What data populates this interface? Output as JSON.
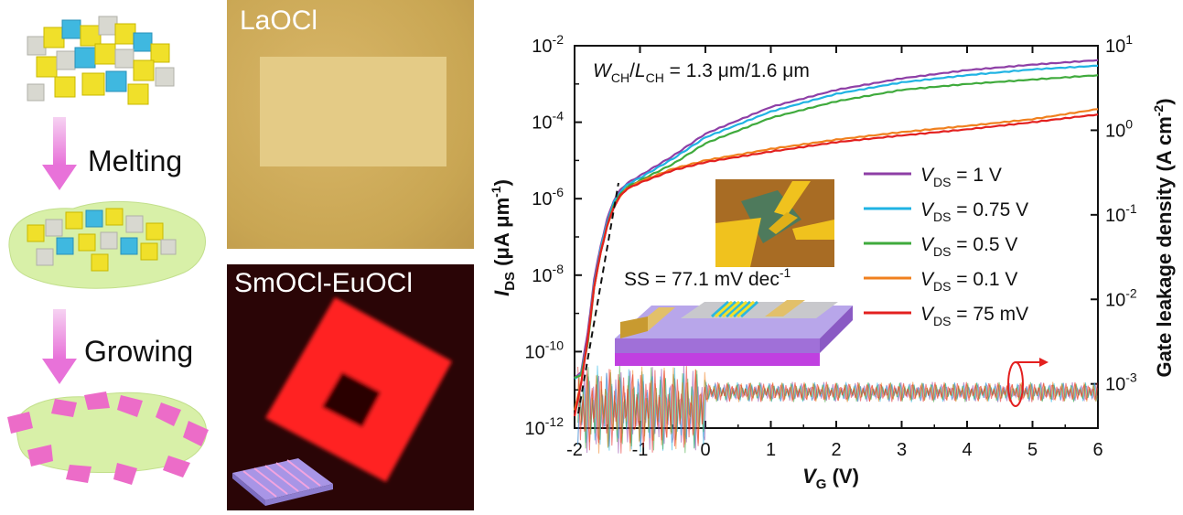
{
  "left": {
    "step1_label": "Melting",
    "step2_label": "Growing"
  },
  "photos": {
    "top_label": "LaOCl",
    "bottom_label": "SmOCl-EuOCl"
  },
  "chart_data": {
    "type": "line",
    "x_axis": {
      "label": "V",
      "label_sub": "G",
      "unit": " (V)",
      "range": [
        -2,
        6
      ],
      "ticks": [
        "-2",
        "-1",
        "0",
        "1",
        "2",
        "3",
        "4",
        "5",
        "6"
      ]
    },
    "y_left": {
      "label": "I",
      "label_sub": "DS",
      "unit": " (μA μm",
      "unit_sup": "-1",
      "unit_close": ")",
      "scale": "log",
      "range": [
        1e-12,
        0.01
      ],
      "tick_mantissa": "10",
      "tick_exponents": [
        "-2",
        "-4",
        "-6",
        "-8",
        "-10",
        "-12"
      ]
    },
    "y_right": {
      "label": "Gate leakage density (A cm",
      "label_sup": "-2",
      "label_close": ")",
      "scale": "log",
      "range": [
        0.0003,
        10
      ],
      "tick_mantissa": "10",
      "tick_exponents": [
        "1",
        "0",
        "-1",
        "-2",
        "-3"
      ]
    },
    "annotations": {
      "geometry_w": "W",
      "geometry_w_sub": "CH",
      "geometry_sep": "/",
      "geometry_l": "L",
      "geometry_l_sub": "CH",
      "geometry_value": " = 1.3 μm/1.6 μm",
      "ss_text": "SS = 77.1 mV dec",
      "ss_sup": "-1"
    },
    "series": [
      {
        "name": "V_DS = 1 V",
        "label_main": "V",
        "label_sub": "DS",
        "label_value": " = 1 V",
        "color": "#8e3fa6",
        "x": [
          -2.0,
          -1.9,
          -1.8,
          -1.7,
          -1.6,
          -1.5,
          -1.4,
          -1.3,
          -1.2,
          -1.0,
          -0.5,
          0,
          1,
          2,
          3,
          4,
          5,
          6
        ],
        "y": [
          2e-11,
          3e-11,
          3e-10,
          8e-09,
          6e-08,
          3e-07,
          9e-07,
          1.7e-06,
          2.5e-06,
          4e-06,
          1.3e-05,
          5e-05,
          0.00025,
          0.0007,
          0.0014,
          0.0023,
          0.0032,
          0.0042
        ]
      },
      {
        "name": "V_DS = 0.75 V",
        "label_main": "V",
        "label_sub": "DS",
        "label_value": " = 0.75 V",
        "color": "#1fb3e3",
        "x": [
          -2.0,
          -1.9,
          -1.8,
          -1.7,
          -1.6,
          -1.5,
          -1.4,
          -1.3,
          -1.2,
          -1.0,
          -0.5,
          0,
          1,
          2,
          3,
          4,
          5,
          6
        ],
        "y": [
          2e-11,
          2.5e-11,
          2e-10,
          6e-09,
          5e-08,
          2.5e-07,
          8e-07,
          1.5e-06,
          2.3e-06,
          3.5e-06,
          1.1e-05,
          4e-05,
          0.00019,
          0.00055,
          0.0011,
          0.0017,
          0.0024,
          0.003
        ]
      },
      {
        "name": "V_DS = 0.5 V",
        "label_main": "V",
        "label_sub": "DS",
        "label_value": " = 0.5 V",
        "color": "#3faa3c",
        "x": [
          -2.0,
          -1.9,
          -1.8,
          -1.7,
          -1.6,
          -1.5,
          -1.4,
          -1.3,
          -1.2,
          -1.0,
          -0.5,
          0,
          1,
          2,
          3,
          4,
          5,
          6
        ],
        "y": [
          2e-11,
          2.5e-11,
          1.5e-10,
          5e-09,
          4e-08,
          2e-07,
          7e-07,
          1.3e-06,
          2e-06,
          3e-06,
          8e-06,
          2.8e-05,
          0.00013,
          0.00035,
          0.0007,
          0.001,
          0.0013,
          0.0017
        ]
      },
      {
        "name": "V_DS = 0.1 V",
        "label_main": "V",
        "label_sub": "DS",
        "label_value": " = 0.1 V",
        "color": "#f0801e",
        "x": [
          -2.0,
          -1.9,
          -1.8,
          -1.7,
          -1.6,
          -1.5,
          -1.4,
          -1.3,
          -1.2,
          -1.0,
          -0.5,
          0,
          1,
          2,
          3,
          4,
          5,
          6
        ],
        "y": [
          3e-12,
          1.5e-11,
          2e-10,
          5e-09,
          4e-08,
          2e-07,
          6e-07,
          1.2e-06,
          1.8e-06,
          2.8e-06,
          6e-06,
          1e-05,
          2e-05,
          3.5e-05,
          5.5e-05,
          8e-05,
          0.00012,
          0.00022
        ]
      },
      {
        "name": "V_DS = 75 mV",
        "label_main": "V",
        "label_sub": "DS",
        "label_value": " = 75 mV",
        "color": "#e3201f",
        "x": [
          -2.0,
          -1.9,
          -1.8,
          -1.7,
          -1.6,
          -1.5,
          -1.4,
          -1.3,
          -1.2,
          -1.0,
          -0.5,
          0,
          1,
          2,
          3,
          4,
          5,
          6
        ],
        "y": [
          2e-12,
          1.5e-11,
          2e-10,
          5e-09,
          4e-08,
          2e-07,
          6e-07,
          1.2e-06,
          1.8e-06,
          2.6e-06,
          5.5e-06,
          9e-06,
          1.7e-05,
          3e-05,
          4.5e-05,
          6.5e-05,
          0.0001,
          0.00016
        ]
      }
    ]
  }
}
